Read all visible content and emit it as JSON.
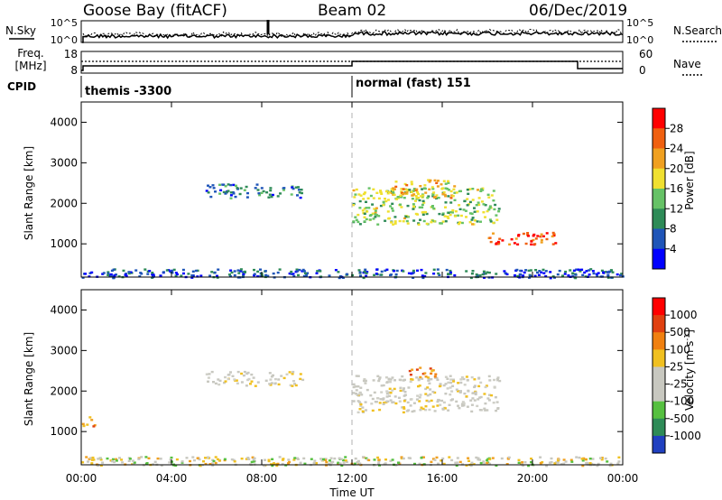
{
  "header": {
    "station": "Goose Bay (fitACF)",
    "beam": "Beam 02",
    "date": "06/Dec/2019"
  },
  "summary_panels": {
    "nsky": {
      "label": "N.Sky",
      "tick_top": "10^5",
      "tick_bottom": "10^0"
    },
    "nsearch": {
      "label": "N.Search",
      "tick_top": "10^5",
      "tick_bottom": "10^0"
    },
    "freq": {
      "label_line1": "Freq.",
      "label_line2": "[MHz]",
      "tick_top": "18",
      "tick_bottom": "8"
    },
    "nave": {
      "label": "Nave",
      "tick_top": "60",
      "tick_bottom": "0"
    },
    "cpid": {
      "label": "CPID",
      "modes": [
        {
          "name": "themis -3300",
          "start_hour": 0
        },
        {
          "name": "normal (fast) 151",
          "start_hour": 12
        }
      ]
    }
  },
  "chart_data": [
    {
      "type": "heatmap",
      "name": "power",
      "ylabel": "Slant Range [km]",
      "xlim_hours": [
        0,
        24
      ],
      "ylim_km": [
        180,
        4500
      ],
      "colorbar": {
        "label": "Power [dB]",
        "ticks": [
          "4",
          "8",
          "12",
          "16",
          "20",
          "24",
          "28"
        ],
        "range": [
          0,
          30
        ],
        "colors": [
          "#0000ff",
          "#1f55b8",
          "#2e8b57",
          "#66c266",
          "#f0e030",
          "#f0a020",
          "#f06010",
          "#ff0000"
        ]
      },
      "yticks": [
        "1000",
        "2000",
        "3000",
        "4000"
      ],
      "regions": [
        {
          "t0": 5.5,
          "t1": 9.8,
          "r0": 2150,
          "r1": 2500,
          "v": 8
        },
        {
          "t0": 12.0,
          "t1": 18.5,
          "r0": 1500,
          "r1": 2400,
          "v": 14
        },
        {
          "t0": 13.5,
          "t1": 16.5,
          "r0": 2150,
          "r1": 2600,
          "v": 18
        },
        {
          "t0": 18.0,
          "t1": 21.0,
          "r0": 1000,
          "r1": 1300,
          "v": 26
        },
        {
          "t0": 0.0,
          "t1": 24.0,
          "r0": 180,
          "r1": 400,
          "v": 6
        }
      ]
    },
    {
      "type": "heatmap",
      "name": "velocity",
      "ylabel": "Slant Range [km]",
      "xlabel": "Time UT",
      "xlim_hours": [
        0,
        24
      ],
      "ylim_km": [
        180,
        4500
      ],
      "xticks": [
        "00:00",
        "04:00",
        "08:00",
        "12:00",
        "16:00",
        "20:00",
        "00:00"
      ],
      "yticks": [
        "1000",
        "2000",
        "3000",
        "4000"
      ],
      "colorbar": {
        "label": "Velocity [m s^-1]",
        "ticks": [
          "1000",
          "500",
          "100",
          "25",
          "-25",
          "-100",
          "-500",
          "-1000"
        ],
        "colors": [
          "#2040c0",
          "#2e8b57",
          "#56c040",
          "#c8c8c0",
          "#c8c8c0",
          "#f0c020",
          "#f08010",
          "#e04010",
          "#ff0000"
        ]
      },
      "regions": [
        {
          "t0": 5.5,
          "t1": 9.8,
          "r0": 2150,
          "r1": 2500,
          "v": "gray"
        },
        {
          "t0": 12.0,
          "t1": 18.5,
          "r0": 1500,
          "r1": 2400,
          "v": "gray"
        },
        {
          "t0": 0.0,
          "t1": 0.6,
          "r0": 1150,
          "r1": 1450,
          "v": "orange"
        },
        {
          "t0": 14.5,
          "t1": 15.8,
          "r0": 2350,
          "r1": 2600,
          "v": "orange"
        },
        {
          "t0": 0.0,
          "t1": 24.0,
          "r0": 180,
          "r1": 400,
          "v": "yellow"
        }
      ]
    }
  ],
  "colors": {
    "axis": "#000000",
    "noon_line": "#b0b0b0",
    "gray_scatter": "#c8c8c0"
  }
}
